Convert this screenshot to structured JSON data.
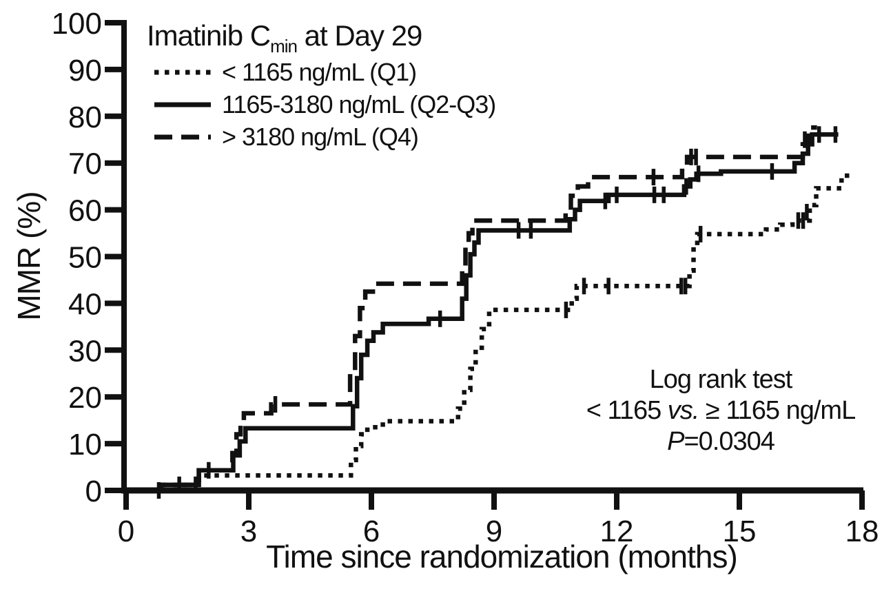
{
  "chart_data": {
    "type": "line",
    "subtype": "kaplan-meier-step",
    "title": "",
    "xlabel": "Time since randomization (months)",
    "ylabel": "MMR (%)",
    "xlim": [
      0,
      18
    ],
    "ylim": [
      0,
      100
    ],
    "x_ticks": [
      0,
      3,
      6,
      9,
      12,
      15,
      18
    ],
    "y_ticks": [
      0,
      10,
      20,
      30,
      40,
      50,
      60,
      70,
      80,
      90,
      100
    ],
    "grid": false,
    "legend_position": "top-left",
    "legend_title_parts": {
      "prefix": "Imatinib C",
      "sub": "min",
      "suffix": " at Day 29"
    },
    "line_color": "#111111",
    "series": [
      {
        "name": "q1",
        "label": "< 1165 ng/mL (Q1)",
        "line_style": "dotted",
        "color": "#111111",
        "end_month": 17.72,
        "points": [
          [
            0,
            0
          ],
          [
            0.85,
            1.2
          ],
          [
            1.78,
            3.2
          ],
          [
            5.5,
            6.5
          ],
          [
            5.62,
            9.5
          ],
          [
            5.75,
            12
          ],
          [
            5.9,
            13.5
          ],
          [
            6.28,
            14.8
          ],
          [
            8.12,
            17.5
          ],
          [
            8.27,
            21.5
          ],
          [
            8.42,
            26
          ],
          [
            8.55,
            30.5
          ],
          [
            8.7,
            34.5
          ],
          [
            8.88,
            38.6
          ],
          [
            10.9,
            41
          ],
          [
            11.02,
            43.7
          ],
          [
            13.78,
            47
          ],
          [
            13.88,
            51.5
          ],
          [
            13.97,
            54.8
          ],
          [
            15.65,
            55.8
          ],
          [
            16.0,
            56.8
          ],
          [
            16.3,
            57.7
          ],
          [
            16.72,
            61
          ],
          [
            16.88,
            64.6
          ],
          [
            17.5,
            67.3
          ]
        ],
        "censors": [
          [
            10.76,
            38.6
          ],
          [
            11.2,
            43.7
          ],
          [
            11.8,
            43.7
          ],
          [
            13.58,
            43.7
          ],
          [
            13.68,
            43.7
          ],
          [
            14.05,
            54.8
          ],
          [
            16.44,
            57.7
          ],
          [
            16.56,
            57.7
          ],
          [
            16.65,
            59.5
          ]
        ]
      },
      {
        "name": "q2_q3",
        "label": "1165-3180 ng/mL (Q2-Q3)",
        "line_style": "solid",
        "color": "#111111",
        "end_month": 17.42,
        "points": [
          [
            0,
            0
          ],
          [
            0.85,
            1.2
          ],
          [
            1.78,
            4.3
          ],
          [
            2.62,
            7.5
          ],
          [
            2.78,
            10.5
          ],
          [
            2.92,
            13.3
          ],
          [
            5.55,
            18
          ],
          [
            5.65,
            24
          ],
          [
            5.75,
            29
          ],
          [
            5.9,
            32
          ],
          [
            6.05,
            33.8
          ],
          [
            6.28,
            35.6
          ],
          [
            7.4,
            36.7
          ],
          [
            8.22,
            41
          ],
          [
            8.32,
            46
          ],
          [
            8.42,
            50.5
          ],
          [
            8.52,
            53
          ],
          [
            8.62,
            55.6
          ],
          [
            10.85,
            58
          ],
          [
            10.98,
            60
          ],
          [
            11.1,
            61.9
          ],
          [
            11.8,
            63.2
          ],
          [
            13.65,
            65
          ],
          [
            13.8,
            66.5
          ],
          [
            13.95,
            67.7
          ],
          [
            14.55,
            68.2
          ],
          [
            16.35,
            70
          ],
          [
            16.55,
            72
          ],
          [
            16.68,
            74
          ],
          [
            16.78,
            76.1
          ]
        ],
        "censors": [
          [
            0.8,
            0
          ],
          [
            1.3,
            1.2
          ],
          [
            1.7,
            1.2
          ],
          [
            2.02,
            4.3
          ],
          [
            7.68,
            36.7
          ],
          [
            9.6,
            55.6
          ],
          [
            9.9,
            55.6
          ],
          [
            11.72,
            61.9
          ],
          [
            12.0,
            63.2
          ],
          [
            12.92,
            63.2
          ],
          [
            13.15,
            63.2
          ],
          [
            13.7,
            65
          ],
          [
            14.0,
            67.7
          ],
          [
            15.8,
            68.2
          ],
          [
            16.95,
            76.1
          ],
          [
            17.35,
            76.1
          ]
        ]
      },
      {
        "name": "q4",
        "label": "> 3180 ng/mL (Q4)",
        "line_style": "dashed",
        "color": "#111111",
        "end_month": 16.9,
        "points": [
          [
            0,
            0
          ],
          [
            0.85,
            1.2
          ],
          [
            1.78,
            4.3
          ],
          [
            2.6,
            8
          ],
          [
            2.7,
            12
          ],
          [
            2.8,
            14.5
          ],
          [
            2.88,
            16.5
          ],
          [
            3.55,
            18.4
          ],
          [
            5.48,
            25
          ],
          [
            5.6,
            33
          ],
          [
            5.72,
            39
          ],
          [
            5.85,
            42.5
          ],
          [
            6.1,
            44.2
          ],
          [
            8.22,
            48
          ],
          [
            8.3,
            52
          ],
          [
            8.38,
            55
          ],
          [
            8.47,
            57.7
          ],
          [
            10.75,
            60.5
          ],
          [
            10.88,
            63
          ],
          [
            11.05,
            65
          ],
          [
            11.3,
            67
          ],
          [
            13.6,
            69.2
          ],
          [
            13.72,
            71.3
          ],
          [
            16.55,
            74
          ],
          [
            16.68,
            77.6
          ]
        ],
        "censors": [
          [
            3.65,
            18.4
          ],
          [
            12.9,
            67
          ],
          [
            13.82,
            71.3
          ],
          [
            13.94,
            71.3
          ],
          [
            16.6,
            75
          ]
        ]
      }
    ],
    "annotation": {
      "line1": "Log rank test",
      "line2_parts": {
        "pre": "< 1165 ",
        "italic": "vs.",
        "post": " ≥ 1165 ng/mL"
      },
      "line3_parts": {
        "italic": "P",
        "rest": "=0.0304"
      }
    }
  }
}
